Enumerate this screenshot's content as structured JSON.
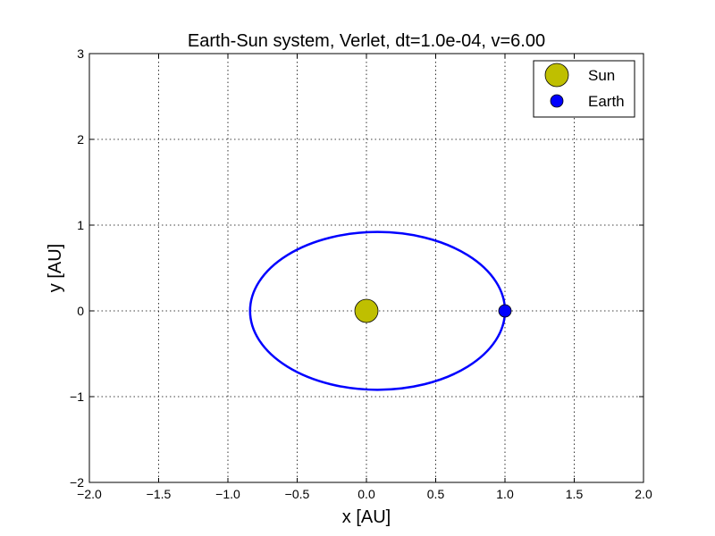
{
  "chart_data": {
    "type": "line",
    "title": "Earth-Sun system, Verlet, dt=1.0e-04, v=6.00",
    "xlabel": "x [AU]",
    "ylabel": "y [AU]",
    "xlim": [
      -2.0,
      2.0
    ],
    "ylim": [
      -2,
      3
    ],
    "xticks": [
      -2.0,
      -1.5,
      -1.0,
      -0.5,
      0.0,
      0.5,
      1.0,
      1.5,
      2.0
    ],
    "xtick_labels": [
      "−2.0",
      "−1.5",
      "−1.0",
      "−0.5",
      "0.0",
      "0.5",
      "1.0",
      "1.5",
      "2.0"
    ],
    "yticks": [
      -2,
      -1,
      0,
      1,
      2,
      3
    ],
    "ytick_labels": [
      "−2",
      "−1",
      "0",
      "1",
      "2",
      "3"
    ],
    "grid": true,
    "legend_position": "top-right",
    "orbit": {
      "color": "#0000ff",
      "center": [
        0.08,
        0.0
      ],
      "semi_axis_x": 0.92,
      "semi_axis_y": 0.92
    },
    "series": [
      {
        "name": "Sun",
        "x": [
          0.0
        ],
        "y": [
          0.0
        ],
        "color": "#bfbf00"
      },
      {
        "name": "Earth",
        "x": [
          1.0
        ],
        "y": [
          0.0
        ],
        "color": "#0000ff"
      }
    ]
  }
}
